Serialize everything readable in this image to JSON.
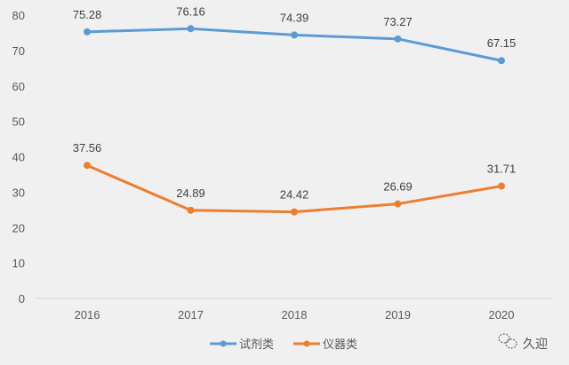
{
  "chart_data": {
    "type": "line",
    "title": "",
    "xlabel": "",
    "ylabel": "",
    "categories": [
      "2016",
      "2017",
      "2018",
      "2019",
      "2020"
    ],
    "ylim": [
      0,
      80
    ],
    "yticks": [
      "0",
      "10",
      "20",
      "30",
      "40",
      "50",
      "60",
      "70",
      "80"
    ],
    "grid": false,
    "legend_position": "bottom",
    "series": [
      {
        "name": "试剂类",
        "color": "#5b9bd5",
        "values": [
          75.28,
          76.16,
          74.39,
          73.27,
          67.15
        ],
        "labels": [
          "75.28",
          "76.16",
          "74.39",
          "73.27",
          "67.15"
        ]
      },
      {
        "name": "仪器类",
        "color": "#ed7d31",
        "values": [
          37.56,
          24.89,
          24.42,
          26.69,
          31.71
        ],
        "labels": [
          "37.56",
          "24.89",
          "24.42",
          "26.69",
          "31.71"
        ]
      }
    ]
  },
  "watermark": {
    "text": "久迎",
    "icon": "wechat-icon"
  }
}
